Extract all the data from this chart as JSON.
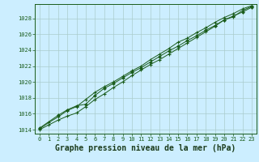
{
  "title": "Graphe pression niveau de la mer (hPa)",
  "bg_color": "#cceeff",
  "grid_color": "#aacccc",
  "line_color": "#1a5c1a",
  "marker_color": "#1a5c1a",
  "xlim": [
    -0.5,
    23.5
  ],
  "ylim": [
    1013.5,
    1029.8
  ],
  "yticks": [
    1014,
    1016,
    1018,
    1020,
    1022,
    1024,
    1026,
    1028
  ],
  "xticks": [
    0,
    1,
    2,
    3,
    4,
    5,
    6,
    7,
    8,
    9,
    10,
    11,
    12,
    13,
    14,
    15,
    16,
    17,
    18,
    19,
    20,
    21,
    22,
    23
  ],
  "series1_x": [
    0,
    1,
    2,
    3,
    4,
    5,
    6,
    7,
    8,
    9,
    10,
    11,
    12,
    13,
    14,
    15,
    16,
    17,
    18,
    19,
    20,
    21,
    22,
    23
  ],
  "series1": [
    1014.0,
    1014.6,
    1015.2,
    1015.7,
    1016.1,
    1016.9,
    1017.8,
    1018.5,
    1019.3,
    1020.0,
    1020.8,
    1021.5,
    1022.2,
    1022.8,
    1023.5,
    1024.2,
    1024.9,
    1025.6,
    1026.3,
    1027.0,
    1027.8,
    1028.2,
    1029.0,
    1029.5
  ],
  "series2_x": [
    0,
    1,
    2,
    3,
    4,
    5,
    6,
    7,
    8,
    9,
    10,
    11,
    12,
    13,
    14,
    15,
    16,
    17,
    18,
    19,
    20,
    21,
    22,
    23
  ],
  "series2": [
    1014.1,
    1014.9,
    1015.6,
    1016.4,
    1016.9,
    1017.8,
    1018.7,
    1019.4,
    1020.0,
    1020.7,
    1021.4,
    1022.0,
    1022.8,
    1023.5,
    1024.2,
    1025.0,
    1025.5,
    1026.2,
    1026.8,
    1027.5,
    1028.1,
    1028.6,
    1029.2,
    1029.6
  ],
  "series3_x": [
    0,
    2,
    3,
    4,
    5,
    6,
    7,
    8,
    9,
    10,
    11,
    12,
    13,
    14,
    15,
    16,
    17,
    18,
    19,
    20,
    21,
    22,
    23
  ],
  "series3": [
    1014.2,
    1015.8,
    1016.5,
    1017.0,
    1017.2,
    1018.3,
    1019.2,
    1019.8,
    1020.5,
    1021.2,
    1021.8,
    1022.5,
    1023.2,
    1023.9,
    1024.5,
    1025.2,
    1025.8,
    1026.5,
    1027.1,
    1027.8,
    1028.3,
    1028.8,
    1029.4
  ],
  "ylabel_fontsize": 6,
  "xlabel_fontsize": 7,
  "tick_fontsize": 5
}
